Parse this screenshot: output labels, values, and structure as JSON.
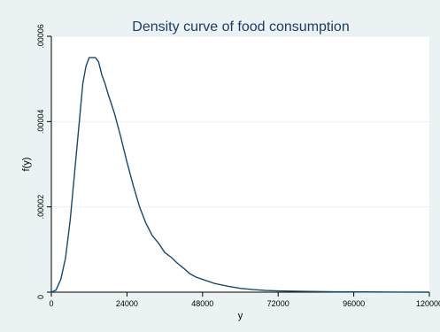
{
  "chart_data": {
    "type": "line",
    "title": "Density curve of food consumption",
    "xlabel": "y",
    "ylabel": "f(y)",
    "xlim": [
      0,
      120000
    ],
    "ylim": [
      0,
      6e-05
    ],
    "x_ticks": [
      0,
      24000,
      48000,
      72000,
      96000,
      120000
    ],
    "x_tick_labels": [
      "0",
      "24000",
      "48000",
      "72000",
      "96000",
      "120000"
    ],
    "y_ticks": [
      0,
      2e-05,
      4e-05,
      6e-05
    ],
    "y_tick_labels": [
      "0",
      ".00002",
      ".00004",
      ".00006"
    ],
    "grid": "horizontal",
    "legend": "none",
    "colors": {
      "background": "#eaf2f3",
      "plot_area": "#ffffff",
      "line": "#1a476f",
      "grid": "#eaf2f3",
      "title": "#1e3c64"
    },
    "series": [
      {
        "x": [
          0,
          1500,
          3000,
          4500,
          6000,
          7500,
          9000,
          10000,
          11000,
          12000,
          13000,
          14000,
          15000,
          16000,
          17000,
          18000,
          20000,
          22000,
          24000,
          26000,
          28000,
          30000,
          32000,
          34000,
          36000,
          38000,
          40000,
          42000,
          44000,
          46000,
          48000,
          52000,
          56000,
          60000,
          64000,
          68000,
          72000,
          80000,
          90000,
          100000,
          110000,
          120000
        ],
        "y": [
          0,
          5e-07,
          3e-06,
          8e-06,
          1.7e-05,
          2.9e-05,
          4.1e-05,
          4.9e-05,
          5.3e-05,
          5.5e-05,
          5.5e-05,
          5.5e-05,
          5.4e-05,
          5.1e-05,
          4.9e-05,
          4.65e-05,
          4.2e-05,
          3.65e-05,
          3.05e-05,
          2.5e-05,
          2e-05,
          1.62e-05,
          1.33e-05,
          1.15e-05,
          9.3e-06,
          8.2e-06,
          6.8e-06,
          5.6e-06,
          4.3e-06,
          3.5e-06,
          3e-06,
          2e-06,
          1.4e-06,
          9e-07,
          6e-07,
          4e-07,
          3e-07,
          2e-07,
          1e-07,
          5e-08,
          2e-08,
          0
        ]
      }
    ]
  }
}
